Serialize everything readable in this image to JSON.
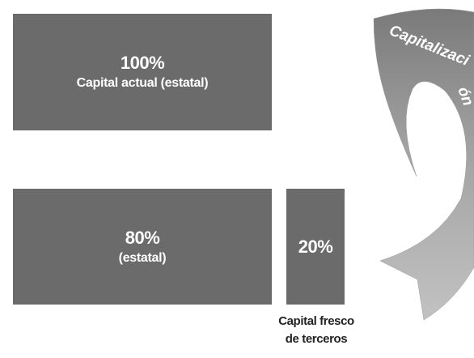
{
  "boxes": {
    "current": {
      "percent": "100%",
      "label": "Capital actual (estatal)"
    },
    "state": {
      "percent": "80%",
      "label": "(estatal)"
    },
    "fresh": {
      "percent": "20%"
    }
  },
  "fresh_caption": {
    "line1": "Capital fresco",
    "line2": "de terceros"
  },
  "arrow": {
    "label": "Capitalizaci",
    "label_cont": "ón"
  },
  "colors": {
    "box": "#6b6b6b",
    "arrow_dark": "#7a7a7a",
    "arrow_light": "#b8b8b8"
  }
}
